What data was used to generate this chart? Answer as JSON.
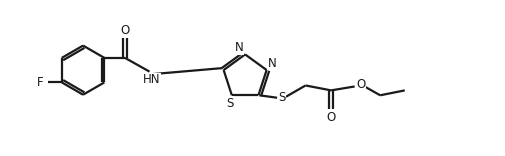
{
  "bg_color": "#ffffff",
  "line_color": "#1a1a1a",
  "line_width": 1.6,
  "font_size_atom": 8.5,
  "figsize": [
    5.05,
    1.56
  ],
  "dpi": 100,
  "xlim": [
    0,
    10.1
  ],
  "ylim": [
    0,
    3.12
  ]
}
